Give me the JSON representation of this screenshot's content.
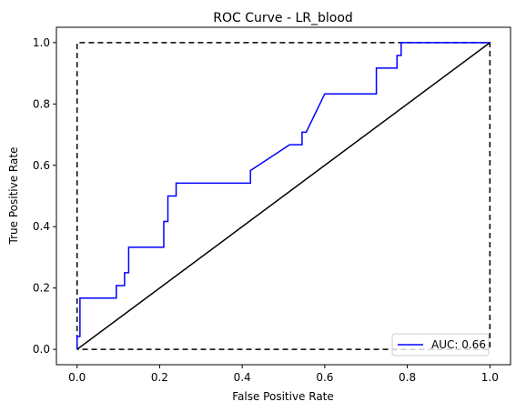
{
  "chart_data": {
    "type": "line",
    "title": "ROC Curve - LR_blood",
    "xlabel": "False Positive Rate",
    "ylabel": "True Positive Rate",
    "xlim": [
      -0.05,
      1.05
    ],
    "ylim": [
      -0.05,
      1.05
    ],
    "x_ticks": [
      "0.0",
      "0.2",
      "0.4",
      "0.6",
      "0.8",
      "1.0"
    ],
    "y_ticks": [
      "0.0",
      "0.2",
      "0.4",
      "0.6",
      "0.8",
      "1.0"
    ],
    "grid": false,
    "legend_position": "lower-right",
    "series": [
      {
        "name": "AUC: 0.66",
        "color": "#0000ff",
        "x": [
          0.0,
          0.0,
          0.007,
          0.007,
          0.095,
          0.095,
          0.115,
          0.115,
          0.125,
          0.125,
          0.21,
          0.21,
          0.22,
          0.22,
          0.24,
          0.24,
          0.42,
          0.42,
          0.515,
          0.545,
          0.545,
          0.555,
          0.6,
          0.725,
          0.725,
          0.775,
          0.775,
          0.785,
          0.785,
          1.0
        ],
        "y": [
          0.0,
          0.042,
          0.042,
          0.167,
          0.167,
          0.208,
          0.208,
          0.25,
          0.25,
          0.333,
          0.333,
          0.417,
          0.417,
          0.5,
          0.5,
          0.542,
          0.542,
          0.583,
          0.667,
          0.667,
          0.708,
          0.708,
          0.833,
          0.833,
          0.917,
          0.917,
          0.958,
          0.958,
          1.0,
          1.0
        ]
      },
      {
        "color": "#000000",
        "style": "solid",
        "x": [
          0,
          1
        ],
        "y": [
          0,
          1
        ]
      },
      {
        "color": "#000000",
        "style": "dashed",
        "x": [
          0,
          0,
          1,
          1,
          0
        ],
        "y": [
          0,
          1,
          1,
          0,
          0
        ]
      }
    ]
  }
}
